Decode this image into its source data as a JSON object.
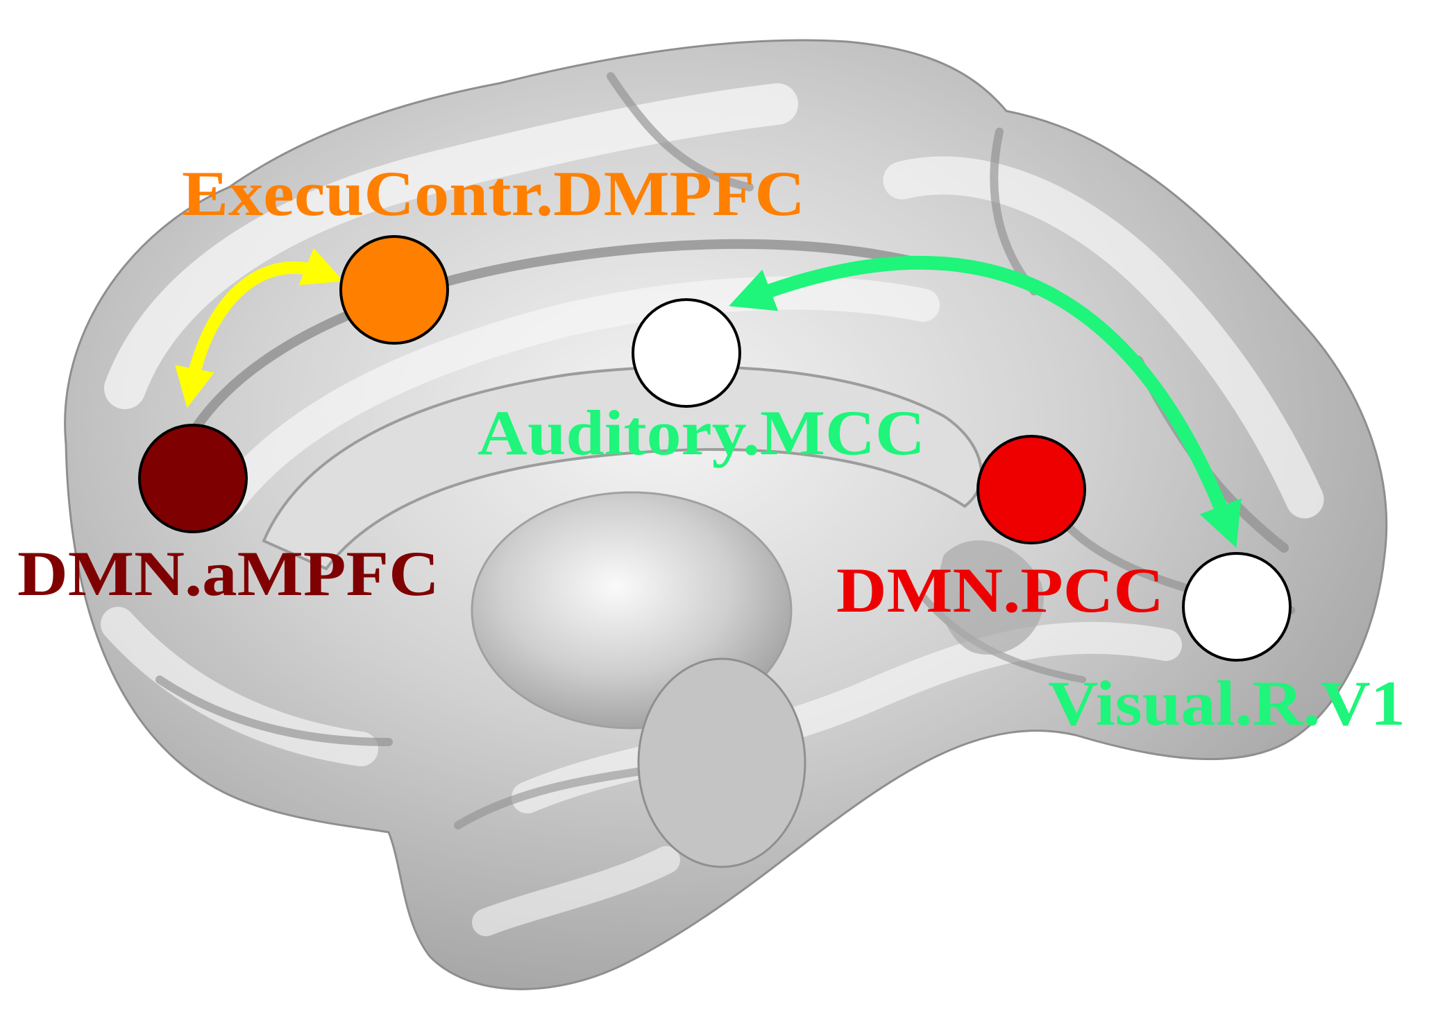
{
  "figure": {
    "nodes": [
      {
        "id": "execucontr_dmpfc",
        "label": "ExecuContr.DMPFC",
        "fill": "#FF7F00",
        "label_color": "#FF7F00"
      },
      {
        "id": "auditory_mcc",
        "label": "Auditory.MCC",
        "fill": "#FFFFFF",
        "label_color": "#1EF57A"
      },
      {
        "id": "dmn_ampfc",
        "label": "DMN.aMPFC",
        "fill": "#7F0000",
        "label_color": "#7F0000"
      },
      {
        "id": "dmn_pcc",
        "label": "DMN.PCC",
        "fill": "#EE0000",
        "label_color": "#EE0000"
      },
      {
        "id": "visual_r_v1",
        "label": "Visual.R.V1",
        "fill": "#FFFFFF",
        "label_color": "#1EF57A"
      }
    ],
    "connections": [
      {
        "from": "execucontr_dmpfc",
        "to": "dmn_ampfc",
        "color": "#FFFF00",
        "bidirectional": true
      },
      {
        "from": "auditory_mcc",
        "to": "visual_r_v1",
        "color": "#1EF57A",
        "bidirectional": true
      }
    ],
    "colors": {
      "brain_base": "#C9C9C9",
      "brain_highlight": "#F2F2F2",
      "brain_shadow": "#8E8E8E",
      "node_outline": "#000000"
    }
  }
}
